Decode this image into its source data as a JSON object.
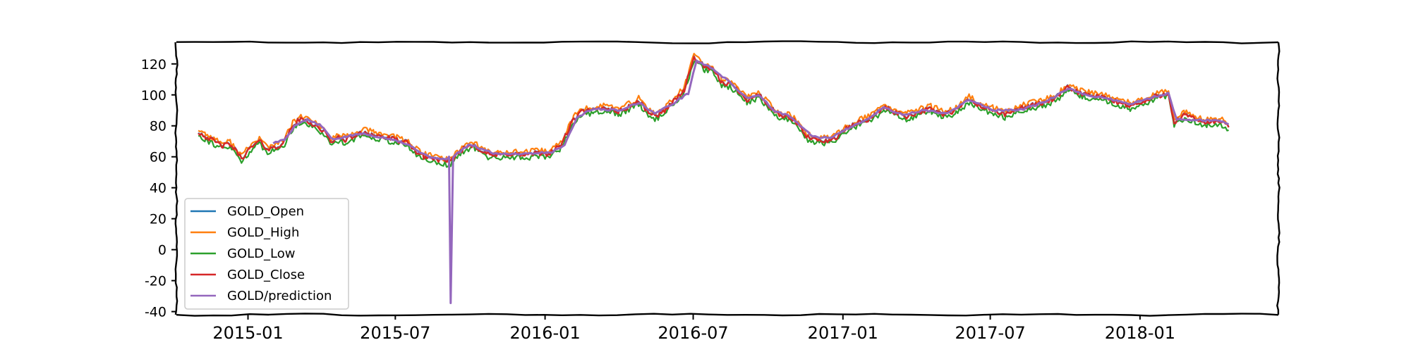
{
  "chart_data": {
    "type": "line",
    "title": "",
    "xlabel": "",
    "ylabel": "",
    "x_axis_type": "date",
    "xlim": [
      "2014-10-05",
      "2018-06-20"
    ],
    "ylim": [
      -42,
      134
    ],
    "y_ticks": [
      120,
      100,
      80,
      60,
      40,
      20,
      0,
      -20,
      -40
    ],
    "y_tick_labels": [
      "120",
      "100",
      "80",
      "60",
      "40",
      "20",
      "0",
      "-20",
      "-40"
    ],
    "x_ticks": [
      "2015-01-01",
      "2015-07-01",
      "2016-01-01",
      "2016-07-01",
      "2017-01-01",
      "2017-07-01",
      "2018-01-01"
    ],
    "x_tick_labels": [
      "2015-01",
      "2015-07",
      "2016-01",
      "2016-07",
      "2017-01",
      "2017-07",
      "2018-01"
    ],
    "grid": false,
    "legend_position": "lower-left",
    "style": "xkcd-like hand-drawn axes",
    "series": [
      {
        "name": "GOLD_Open",
        "color": "#1f77b4"
      },
      {
        "name": "GOLD_High",
        "color": "#ff7f0e"
      },
      {
        "name": "GOLD_Low",
        "color": "#2ca02c"
      },
      {
        "name": "GOLD_Close",
        "color": "#d62728"
      },
      {
        "name": "GOLD/prediction",
        "color": "#9467bd"
      }
    ],
    "close_points": [
      [
        "2014-11-01",
        76
      ],
      [
        "2014-11-10",
        73
      ],
      [
        "2014-11-20",
        70
      ],
      [
        "2014-12-01",
        67
      ],
      [
        "2014-12-10",
        68
      ],
      [
        "2014-12-20",
        62
      ],
      [
        "2014-12-24",
        59
      ],
      [
        "2015-01-05",
        66
      ],
      [
        "2015-01-15",
        70
      ],
      [
        "2015-01-25",
        65
      ],
      [
        "2015-02-05",
        66
      ],
      [
        "2015-02-15",
        70
      ],
      [
        "2015-02-25",
        80
      ],
      [
        "2015-03-05",
        84
      ],
      [
        "2015-03-15",
        83
      ],
      [
        "2015-03-25",
        80
      ],
      [
        "2015-04-05",
        76
      ],
      [
        "2015-04-12",
        70
      ],
      [
        "2015-04-22",
        72
      ],
      [
        "2015-05-01",
        71
      ],
      [
        "2015-05-15",
        74
      ],
      [
        "2015-05-25",
        76
      ],
      [
        "2015-06-05",
        74
      ],
      [
        "2015-06-15",
        73
      ],
      [
        "2015-07-01",
        71
      ],
      [
        "2015-07-15",
        69
      ],
      [
        "2015-07-25",
        64
      ],
      [
        "2015-08-05",
        60
      ],
      [
        "2015-08-15",
        59
      ],
      [
        "2015-08-25",
        58
      ],
      [
        "2015-09-05",
        56
      ],
      [
        "2015-09-15",
        62
      ],
      [
        "2015-09-25",
        66
      ],
      [
        "2015-10-05",
        68
      ],
      [
        "2015-10-15",
        64
      ],
      [
        "2015-10-25",
        61
      ],
      [
        "2015-11-05",
        61
      ],
      [
        "2015-11-20",
        62
      ],
      [
        "2015-12-05",
        61
      ],
      [
        "2015-12-20",
        62
      ],
      [
        "2016-01-05",
        62
      ],
      [
        "2016-01-20",
        67
      ],
      [
        "2016-02-05",
        84
      ],
      [
        "2016-02-15",
        89
      ],
      [
        "2016-03-01",
        90
      ],
      [
        "2016-03-15",
        92
      ],
      [
        "2016-04-01",
        89
      ],
      [
        "2016-04-15",
        93
      ],
      [
        "2016-04-25",
        96
      ],
      [
        "2016-05-05",
        90
      ],
      [
        "2016-05-15",
        86
      ],
      [
        "2016-05-25",
        89
      ],
      [
        "2016-06-05",
        95
      ],
      [
        "2016-06-20",
        103
      ],
      [
        "2016-07-02",
        124
      ],
      [
        "2016-07-15",
        118
      ],
      [
        "2016-07-25",
        116
      ],
      [
        "2016-08-05",
        108
      ],
      [
        "2016-08-15",
        107
      ],
      [
        "2016-08-25",
        103
      ],
      [
        "2016-09-05",
        97
      ],
      [
        "2016-09-20",
        100
      ],
      [
        "2016-10-05",
        91
      ],
      [
        "2016-10-15",
        86
      ],
      [
        "2016-10-25",
        86
      ],
      [
        "2016-11-05",
        82
      ],
      [
        "2016-11-15",
        74
      ],
      [
        "2016-11-25",
        71
      ],
      [
        "2016-12-05",
        71
      ],
      [
        "2016-12-15",
        70
      ],
      [
        "2016-12-25",
        73
      ],
      [
        "2017-01-05",
        78
      ],
      [
        "2017-01-20",
        82
      ],
      [
        "2017-02-05",
        85
      ],
      [
        "2017-02-20",
        92
      ],
      [
        "2017-03-05",
        89
      ],
      [
        "2017-03-20",
        86
      ],
      [
        "2017-04-05",
        89
      ],
      [
        "2017-04-20",
        91
      ],
      [
        "2017-05-05",
        87
      ],
      [
        "2017-05-20",
        90
      ],
      [
        "2017-06-05",
        97
      ],
      [
        "2017-06-20",
        92
      ],
      [
        "2017-07-05",
        90
      ],
      [
        "2017-07-20",
        87
      ],
      [
        "2017-08-05",
        91
      ],
      [
        "2017-08-20",
        93
      ],
      [
        "2017-09-05",
        95
      ],
      [
        "2017-09-20",
        98
      ],
      [
        "2017-10-05",
        105
      ],
      [
        "2017-10-20",
        101
      ],
      [
        "2017-11-05",
        99
      ],
      [
        "2017-11-20",
        98
      ],
      [
        "2017-12-05",
        95
      ],
      [
        "2017-12-20",
        93
      ],
      [
        "2018-01-05",
        95
      ],
      [
        "2018-01-20",
        99
      ],
      [
        "2018-02-05",
        101
      ],
      [
        "2018-02-12",
        82
      ],
      [
        "2018-02-25",
        87
      ],
      [
        "2018-03-10",
        84
      ],
      [
        "2018-03-25",
        82
      ],
      [
        "2018-04-10",
        83
      ],
      [
        "2018-04-20",
        79
      ]
    ],
    "prediction_points": [
      [
        "2015-02-01",
        69
      ],
      [
        "2015-02-15",
        71
      ],
      [
        "2015-03-01",
        81
      ],
      [
        "2015-03-15",
        84
      ],
      [
        "2015-04-01",
        80
      ],
      [
        "2015-04-15",
        71
      ],
      [
        "2015-05-01",
        73
      ],
      [
        "2015-05-20",
        75
      ],
      [
        "2015-06-10",
        73
      ],
      [
        "2015-07-01",
        71
      ],
      [
        "2015-07-20",
        67
      ],
      [
        "2015-08-10",
        60
      ],
      [
        "2015-08-25",
        59
      ],
      [
        "2015-09-01",
        58
      ],
      [
        "2015-09-05",
        60
      ],
      [
        "2015-09-07",
        -35
      ],
      [
        "2015-09-10",
        60
      ],
      [
        "2015-09-20",
        64
      ],
      [
        "2015-10-01",
        68
      ],
      [
        "2015-10-15",
        65
      ],
      [
        "2015-11-01",
        62
      ],
      [
        "2015-12-01",
        62
      ],
      [
        "2016-01-10",
        63
      ],
      [
        "2016-01-25",
        68
      ],
      [
        "2016-02-10",
        86
      ],
      [
        "2016-03-01",
        91
      ],
      [
        "2016-04-01",
        90
      ],
      [
        "2016-04-25",
        95
      ],
      [
        "2016-05-15",
        88
      ],
      [
        "2016-06-05",
        94
      ],
      [
        "2016-06-25",
        101
      ],
      [
        "2016-07-05",
        122
      ],
      [
        "2016-07-25",
        117
      ],
      [
        "2016-08-15",
        108
      ],
      [
        "2016-09-05",
        98
      ],
      [
        "2016-09-20",
        100
      ],
      [
        "2016-10-10",
        89
      ],
      [
        "2016-10-25",
        87
      ],
      [
        "2016-11-10",
        80
      ],
      [
        "2016-11-25",
        73
      ],
      [
        "2016-12-15",
        72
      ],
      [
        "2017-01-10",
        79
      ],
      [
        "2017-02-05",
        86
      ],
      [
        "2017-02-20",
        92
      ],
      [
        "2017-03-15",
        87
      ],
      [
        "2017-04-10",
        90
      ],
      [
        "2017-05-10",
        88
      ],
      [
        "2017-06-05",
        97
      ],
      [
        "2017-07-05",
        90
      ],
      [
        "2017-08-05",
        90
      ],
      [
        "2017-09-05",
        95
      ],
      [
        "2017-10-05",
        104
      ],
      [
        "2017-10-25",
        100
      ],
      [
        "2017-11-20",
        98
      ],
      [
        "2017-12-20",
        94
      ],
      [
        "2018-01-20",
        99
      ],
      [
        "2018-02-05",
        101
      ],
      [
        "2018-02-15",
        84
      ],
      [
        "2018-03-10",
        84
      ],
      [
        "2018-04-10",
        83
      ],
      [
        "2018-04-20",
        81
      ]
    ]
  }
}
